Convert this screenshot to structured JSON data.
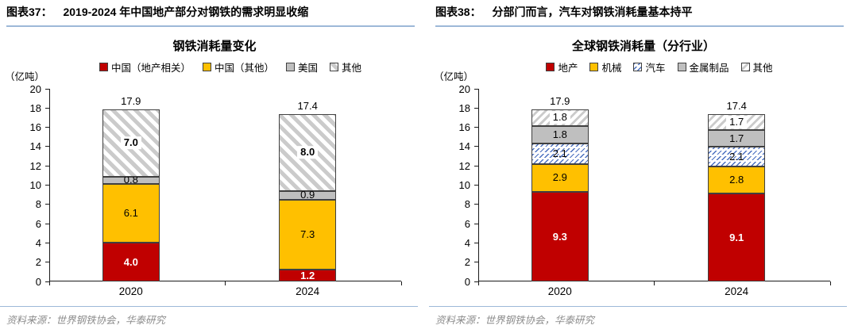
{
  "panels": [
    {
      "figure_label": "图表37：",
      "header_title": "2019-2024 年中国地产部分对钢铁的需求明显收缩",
      "source": "资料来源：世界钢铁协会，华泰研究"
    },
    {
      "figure_label": "图表38：",
      "header_title": "分部门而言，汽车对钢铁消耗量基本持平",
      "source": "资料来源：世界钢铁协会，华泰研究"
    }
  ],
  "chart_data": [
    {
      "type": "bar",
      "stacked": true,
      "title": "钢铁消耗量变化",
      "unit_label": "（亿吨）",
      "categories": [
        "2020",
        "2024"
      ],
      "series": [
        {
          "name": "中国（地产相关）",
          "fill": "red",
          "values": [
            4.0,
            1.2
          ]
        },
        {
          "name": "中国（其他）",
          "fill": "gold",
          "values": [
            6.1,
            7.3
          ]
        },
        {
          "name": "美国",
          "fill": "gray",
          "values": [
            0.8,
            0.9
          ]
        },
        {
          "name": "其他",
          "fill": "hatch-gray",
          "values": [
            7.0,
            8.0
          ]
        }
      ],
      "totals": [
        17.9,
        17.4
      ],
      "ylim": [
        0,
        20
      ],
      "ytick_step": 2,
      "grid": false,
      "legend_position": "top"
    },
    {
      "type": "bar",
      "stacked": true,
      "title": "全球钢铁消耗量（分行业）",
      "unit_label": "（亿吨）",
      "categories": [
        "2020",
        "2024"
      ],
      "series": [
        {
          "name": "地产",
          "fill": "red",
          "values": [
            9.3,
            9.1
          ]
        },
        {
          "name": "机械",
          "fill": "gold",
          "values": [
            2.9,
            2.8
          ]
        },
        {
          "name": "汽车",
          "fill": "hatch-blue",
          "values": [
            2.1,
            2.1
          ]
        },
        {
          "name": "金属制品",
          "fill": "gray",
          "values": [
            1.8,
            1.7
          ]
        },
        {
          "name": "其他",
          "fill": "hatch-gray-fine",
          "values": [
            1.8,
            1.7
          ]
        }
      ],
      "totals": [
        17.9,
        17.4
      ],
      "ylim": [
        0,
        20
      ],
      "ytick_step": 2,
      "grid": false,
      "legend_position": "top"
    }
  ],
  "colors": {
    "red": "#c00000",
    "gold": "#ffc000",
    "gray": "#bfbfbf",
    "hatch_line": "#cbcbcb",
    "hatch_blue": "#4a6fbf",
    "header_rule_blue": "#9db8d8",
    "source_text_gray": "#8c8c8c"
  }
}
